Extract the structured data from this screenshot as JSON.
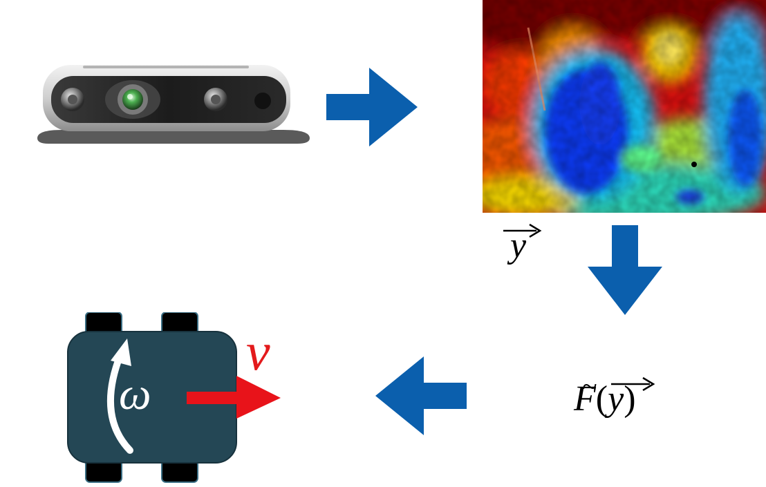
{
  "labels": {
    "observation_symbol": "y",
    "function_symbol": "F",
    "function_open_paren": "(",
    "function_argument": "y",
    "function_close_paren": ")",
    "velocity_symbol": "v",
    "angular_velocity_symbol": "ω"
  },
  "colors": {
    "arrow": "#0b5fad",
    "robot_body": "#244755",
    "robot_wheel": "#000000",
    "velocity_arrow": "#e8131a",
    "rotation_arrow": "#ffffff"
  },
  "icons": {
    "camera": "depth-camera-icon",
    "depth_map": "depth-heatmap-image",
    "robot": "robot-topview-icon"
  }
}
